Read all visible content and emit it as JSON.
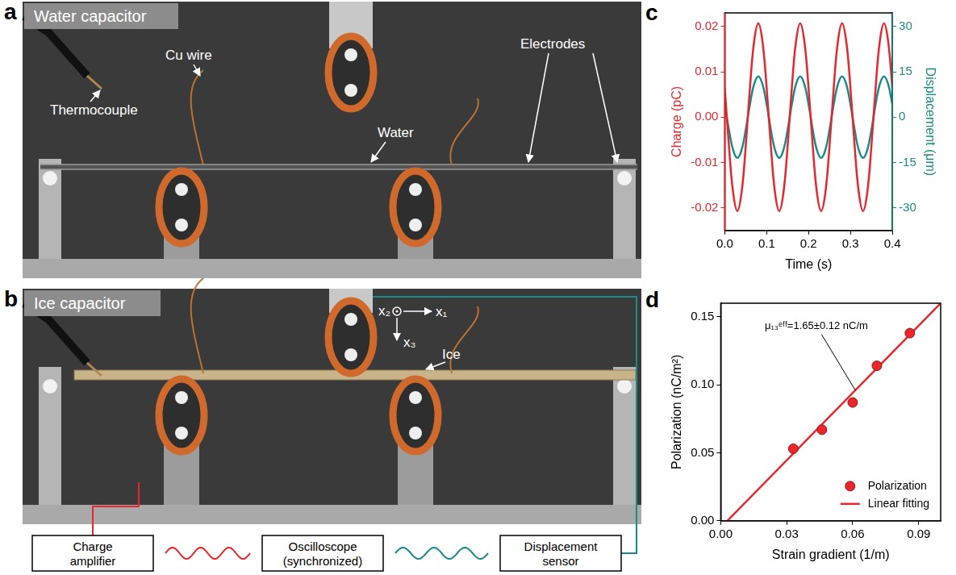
{
  "figure": {
    "panels": [
      {
        "letter": "a",
        "title": "Water capacitor",
        "labels": [
          "Thermocouple",
          "Cu wire",
          "Electrodes",
          "Water"
        ]
      },
      {
        "letter": "b",
        "title": "Ice capacitor",
        "labels": [
          "Ice"
        ],
        "axes": [
          "x₂",
          "x₁",
          "x₃"
        ],
        "blocks": [
          "Charge amplifier",
          "Oscilloscope (synchronized)",
          "Displacement sensor"
        ]
      }
    ]
  },
  "chart_data": [
    {
      "letter": "c",
      "type": "line",
      "x_label": "Time (s)",
      "x": [
        0,
        0.01,
        0.02,
        0.03,
        0.04,
        0.05,
        0.06,
        0.07,
        0.08,
        0.09,
        0.1,
        0.11,
        0.12,
        0.13,
        0.14,
        0.15,
        0.16,
        0.17,
        0.18,
        0.19,
        0.2,
        0.21,
        0.22,
        0.23,
        0.24,
        0.25,
        0.26,
        0.27,
        0.28,
        0.29,
        0.3,
        0.31,
        0.32,
        0.33,
        0.34,
        0.35,
        0.36,
        0.37,
        0.38,
        0.39,
        0.4
      ],
      "xlim": [
        0,
        0.4
      ],
      "xticks": [
        {
          "value": 0,
          "label": "0.0"
        },
        0.1,
        0.2,
        0.3,
        0.4
      ],
      "y_label": "Charge (pC)",
      "ylim": [
        -0.025,
        0.023
      ],
      "yticks": [
        -0.02,
        -0.01,
        {
          "value": 0,
          "label": "0.00"
        },
        0.01,
        0.02
      ],
      "y2_label": "Displacement (μm)",
      "y2lim": [
        -37.5,
        34.5
      ],
      "y2ticks": [
        -30,
        -15,
        0,
        15,
        30
      ],
      "grid": false,
      "series": [
        {
          "color": "#e8262b",
          "line_style": "solid",
          "values": [
            0.0064,
            -0.0064,
            -0.0167,
            -0.0207,
            -0.0167,
            -0.0064,
            0.0064,
            0.0167,
            0.0207,
            0.0167,
            0.0064,
            -0.0064,
            -0.0167,
            -0.0207,
            -0.0167,
            -0.0064,
            0.0064,
            0.0167,
            0.0207,
            0.0167,
            0.0064,
            -0.0064,
            -0.0167,
            -0.0207,
            -0.0167,
            -0.0064,
            0.0064,
            0.0167,
            0.0207,
            0.0167,
            0.0064,
            -0.0064,
            -0.0167,
            -0.0207,
            -0.0167,
            -0.0064,
            0.0064,
            0.0167,
            0.0207,
            0.0167,
            0.0064
          ]
        },
        {
          "color": "#1b8a8c",
          "line_style": "solid",
          "axis": "y2",
          "values": [
            4.2,
            -4.2,
            -10.9,
            -13.5,
            -10.9,
            -4.2,
            4.2,
            10.9,
            13.5,
            10.9,
            4.2,
            -4.2,
            -10.9,
            -13.5,
            -10.9,
            -4.2,
            4.2,
            10.9,
            13.5,
            10.9,
            4.2,
            -4.2,
            -10.9,
            -13.5,
            -10.9,
            -4.2,
            4.2,
            10.9,
            13.5,
            10.9,
            4.2,
            -4.2,
            -10.9,
            -13.5,
            -10.9,
            -4.2,
            4.2,
            10.9,
            13.5,
            10.9,
            4.2
          ]
        }
      ]
    },
    {
      "letter": "d",
      "type": "scatter",
      "x_label": "Strain gradient (1/m)",
      "y_label": "Polarization (nC/m²)",
      "xlim": [
        0,
        0.1
      ],
      "xticks": [
        {
          "value": 0,
          "label": "0.00"
        },
        0.03,
        0.06,
        0.09
      ],
      "ylim": [
        0,
        0.16
      ],
      "yticks": [
        {
          "value": 0,
          "label": "0.00"
        },
        0.05,
        {
          "value": 0.1,
          "label": "0.10"
        },
        0.15
      ],
      "grid": false,
      "legend": "lower right",
      "series": [
        {
          "name": "Polarization",
          "type": "scatter",
          "marker": "circle",
          "color": "#e8262b",
          "x": [
            0.033,
            0.046,
            0.06,
            0.071,
            0.086
          ],
          "values": [
            0.053,
            0.067,
            0.087,
            0.114,
            0.138
          ]
        },
        {
          "name": "Linear fitting",
          "type": "line",
          "line_style": "solid",
          "color": "#e8262b",
          "x": [
            0.003,
            0.1
          ],
          "values": [
            0,
            0.16
          ]
        }
      ],
      "annotations": [
        "μ₁₃ᵉᶠᶠ=1.65±0.12 nC/m"
      ]
    }
  ]
}
